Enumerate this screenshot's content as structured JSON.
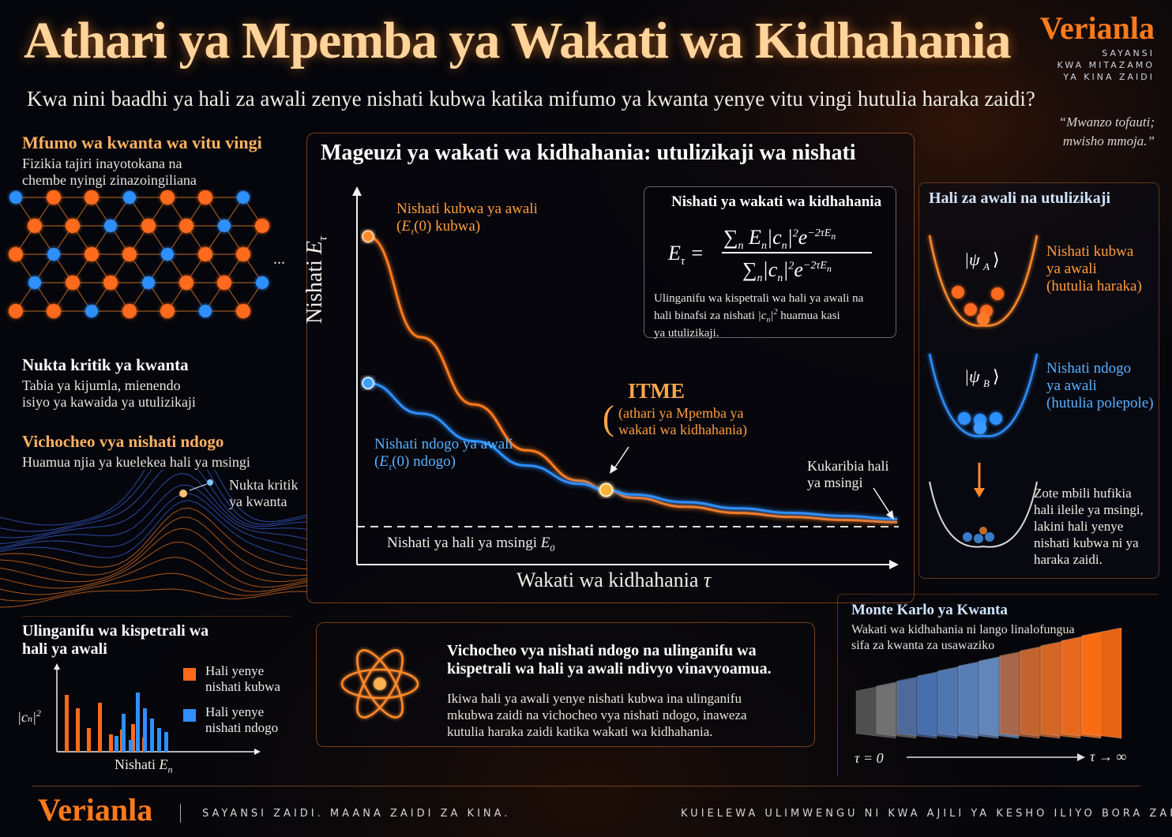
{
  "header": {
    "title": "Athari ya Mpemba ya Wakati wa Kidhahania",
    "subtitle": "Kwa nini baadhi ya hali za awali zenye nishati kubwa katika mifumo ya kwanta yenye vitu vingi hutulia haraka zaidi?",
    "brand": "Verianla",
    "tagline": [
      "SAYANSI",
      "KWA MITAZAMO",
      "YA KINA ZAIDI"
    ],
    "quote": [
      "“Mwanzo tofauti;",
      "mwisho mmoja.”"
    ]
  },
  "left": {
    "section1": {
      "title": "Mfumo wa kwanta wa vitu vingi",
      "text": [
        "Fizikia tajiri inayotokana na",
        "chembe nyingi zinazoingiliana"
      ],
      "ellipsis": "..."
    },
    "section2": {
      "title": "Nukta kritik ya kwanta",
      "text": [
        "Tabia ya kijumla, mienendo",
        "isiyo ya kawaida ya utulizikaji"
      ]
    },
    "section3": {
      "title": "Vichocheo vya nishati ndogo",
      "text": "Huamua njia ya kuelekea hali ya msingi",
      "peak_label": [
        "Nukta kritik",
        "ya kwanta"
      ]
    },
    "section4": {
      "title": [
        "Ulinganifu wa kispetrali wa",
        "hali ya awali"
      ],
      "ylabel": "|c",
      "xlabel": "Nishati",
      "legend": [
        {
          "label": [
            "Hali yenye",
            "nishati kubwa"
          ],
          "color": "#ff6a1a"
        },
        {
          "label": [
            "Hali yenye",
            "nishati ndogo"
          ],
          "color": "#2f8fff"
        }
      ]
    }
  },
  "main_chart": {
    "panel_title": "Mageuzi ya wakati wa kidhahania: utulizikaji wa nishati",
    "ylabel": "Nishati",
    "xlabel": "Wakati wa kidhahania",
    "high_label": [
      "Nishati kubwa ya awali",
      "kubwa)"
    ],
    "low_label": [
      "Nishati ndogo ya awali",
      "ndogo)"
    ],
    "itme_title": "ITME",
    "itme_text": [
      "(athari ya Mpemba ya",
      "wakati wa kidhahania)"
    ],
    "ground_label": "Nishati ya hali ya msingi",
    "approach_label": [
      "Kukaribia hali",
      "ya msingi"
    ],
    "formula_title": "Nishati ya wakati wa kidhahania",
    "formula_note": [
      "Ulinganifu wa kispetrali wa hali ya awali na",
      "hali binafsi za nishati",
      "huamua kasi",
      "ya utulizikaji."
    ]
  },
  "chart_data": {
    "type": "line",
    "xlabel": "Wakati wa kidhahania τ",
    "ylabel": "Nishati E_τ",
    "series": [
      {
        "name": "Nishati kubwa ya awali",
        "color": "#ff7a1a",
        "x": [
          0,
          0.1,
          0.2,
          0.3,
          0.4,
          0.45,
          0.5,
          0.6,
          0.7,
          0.8,
          0.9,
          1.0
        ],
        "y": [
          0.95,
          0.62,
          0.4,
          0.25,
          0.15,
          0.12,
          0.095,
          0.065,
          0.045,
          0.032,
          0.022,
          0.015
        ]
      },
      {
        "name": "Nishati ndogo ya awali",
        "color": "#2f8fff",
        "x": [
          0,
          0.1,
          0.2,
          0.3,
          0.4,
          0.45,
          0.5,
          0.6,
          0.7,
          0.8,
          0.9,
          1.0
        ],
        "y": [
          0.47,
          0.37,
          0.28,
          0.2,
          0.14,
          0.12,
          0.105,
          0.08,
          0.06,
          0.045,
          0.035,
          0.025
        ]
      }
    ],
    "ground_state": 0,
    "crossing": {
      "x": 0.45,
      "y": 0.12
    }
  },
  "right": {
    "title": "Hali za awali na utulizikaji",
    "state_a": [
      "Nishati kubwa",
      "ya awali",
      "(hutulia haraka)"
    ],
    "state_b": [
      "Nishati ndogo",
      "ya awali",
      "(hutulia polepole)"
    ],
    "final": [
      "Zote mbili hufikia",
      "hali ileile ya msingi,",
      "lakini hali yenye",
      "nishati kubwa ni ya",
      "haraka zaidi."
    ]
  },
  "bottom_center": {
    "title": [
      "Vichocheo vya nishati ndogo na ulinganifu wa",
      "kispetrali wa hali ya awali ndivyo vinavyoamua."
    ],
    "text": [
      "Ikiwa hali ya awali yenye nishati kubwa ina ulinganifu",
      "mkubwa zaidi na vichocheo vya nishati ndogo, inaweza",
      "kutulia haraka zaidi katika wakati wa kidhahania."
    ]
  },
  "bottom_right": {
    "title": "Monte Karlo ya Kwanta",
    "text": [
      "Wakati wa kidhahania ni lango linalofungua",
      "sifa za kwanta za usawaziko"
    ],
    "tau0": "τ = 0",
    "tauinf": "τ → ∞"
  },
  "spectral_bars": {
    "orange": [
      0.72,
      0.55,
      0.3,
      0.62,
      0.22,
      0.28,
      0.35,
      0.18
    ],
    "blue": [
      0.2,
      0.48,
      0.15,
      0.75,
      0.55,
      0.42,
      0.3,
      0.25
    ]
  },
  "footer": {
    "brand": "Verianla",
    "left": "SAYANSI ZAIDI. MAANA ZAIDI ZA KINA.",
    "right": "KUIELEWA ULIMWENGU NI KWA AJILI YA KESHO ILIYO BORA ZAIDI."
  }
}
